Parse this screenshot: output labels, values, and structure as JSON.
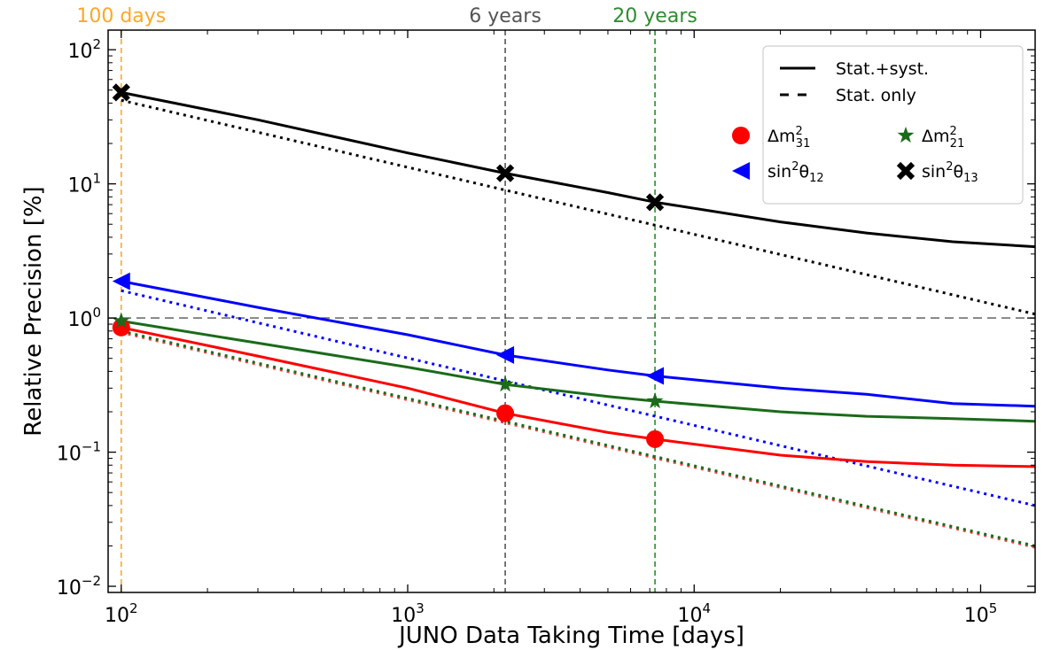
{
  "chart_data": {
    "type": "line",
    "title": "",
    "xlabel": "JUNO Data Taking Time [days]",
    "ylabel": "Relative Precision [%]",
    "xscale": "log",
    "yscale": "log",
    "xlim": [
      90,
      155000
    ],
    "ylim": [
      0.009,
      140
    ],
    "x_ticks": [
      {
        "value": 100,
        "base": "10",
        "exp": "2"
      },
      {
        "value": 1000,
        "base": "10",
        "exp": "3"
      },
      {
        "value": 10000,
        "base": "10",
        "exp": "4"
      },
      {
        "value": 100000,
        "base": "10",
        "exp": "5"
      }
    ],
    "y_ticks": [
      {
        "value": 0.01,
        "base": "10",
        "exp": "−2"
      },
      {
        "value": 0.1,
        "base": "10",
        "exp": "−1"
      },
      {
        "value": 1,
        "base": "10",
        "exp": "0"
      },
      {
        "value": 10,
        "base": "10",
        "exp": "1"
      },
      {
        "value": 100,
        "base": "10",
        "exp": "2"
      }
    ],
    "reference_lines": [
      {
        "axis": "x",
        "value": 100,
        "label": "100 days",
        "color": "#ffa726"
      },
      {
        "axis": "x",
        "value": 2190,
        "label": "6 years",
        "color": "#555555"
      },
      {
        "axis": "x",
        "value": 7300,
        "label": "20 years",
        "color": "#2e8b2e"
      },
      {
        "axis": "y",
        "value": 1,
        "label": "",
        "color": "#555555"
      }
    ],
    "series": [
      {
        "name": "sin²θ13",
        "color": "#000000",
        "marker": "x",
        "syst": {
          "x": [
            100,
            300,
            1000,
            2190,
            5000,
            7300,
            20000,
            40000,
            80000,
            155000
          ],
          "y": [
            48,
            30,
            17,
            12,
            8.6,
            7.3,
            5.2,
            4.3,
            3.7,
            3.4
          ]
        },
        "stat": {
          "x": [
            100,
            155000
          ],
          "y": [
            42,
            1.07
          ]
        },
        "markers": {
          "x": [
            100,
            2190,
            7300
          ],
          "y": [
            48,
            12,
            7.3
          ]
        }
      },
      {
        "name": "sin²θ12",
        "color": "#0000ff",
        "marker": "triangle-left",
        "syst": {
          "x": [
            100,
            300,
            1000,
            2190,
            5000,
            7300,
            20000,
            40000,
            80000,
            155000
          ],
          "y": [
            1.88,
            1.2,
            0.75,
            0.53,
            0.41,
            0.37,
            0.3,
            0.27,
            0.23,
            0.22
          ]
        },
        "stat": {
          "x": [
            100,
            155000
          ],
          "y": [
            1.6,
            0.04
          ]
        },
        "markers": {
          "x": [
            100,
            2190,
            7300
          ],
          "y": [
            1.88,
            0.53,
            0.37
          ]
        }
      },
      {
        "name": "Δm²21",
        "color": "#1a6b1a",
        "marker": "star",
        "syst": {
          "x": [
            100,
            300,
            1000,
            2190,
            5000,
            7300,
            20000,
            40000,
            80000,
            155000
          ],
          "y": [
            0.95,
            0.65,
            0.43,
            0.32,
            0.26,
            0.24,
            0.2,
            0.185,
            0.178,
            0.17
          ]
        },
        "stat": {
          "x": [
            100,
            155000
          ],
          "y": [
            0.8,
            0.02
          ]
        },
        "markers": {
          "x": [
            100,
            2190,
            7300
          ],
          "y": [
            0.95,
            0.32,
            0.24
          ]
        }
      },
      {
        "name": "Δm²31",
        "color": "#ff0000",
        "marker": "circle",
        "syst": {
          "x": [
            100,
            300,
            1000,
            2190,
            5000,
            7300,
            20000,
            40000,
            80000,
            155000
          ],
          "y": [
            0.85,
            0.52,
            0.3,
            0.195,
            0.14,
            0.125,
            0.095,
            0.085,
            0.08,
            0.078
          ]
        },
        "stat": {
          "x": [
            100,
            155000
          ],
          "y": [
            0.78,
            0.0195
          ]
        },
        "markers": {
          "x": [
            100,
            2190,
            7300
          ],
          "y": [
            0.85,
            0.195,
            0.125
          ]
        }
      }
    ],
    "legend": {
      "placement": "top-right",
      "style_entries": [
        {
          "label": "Stat.+syst.",
          "style": "solid"
        },
        {
          "label": "Stat. only",
          "style": "dashed"
        }
      ],
      "marker_entries": [
        {
          "base": "Δm",
          "sup": "2",
          "sub": "31",
          "color": "#ff0000",
          "marker": "circle"
        },
        {
          "base": "Δm",
          "sup": "2",
          "sub": "21",
          "color": "#1a6b1a",
          "marker": "star"
        },
        {
          "base": "sin",
          "sup": "2",
          "sym": "θ",
          "sub": "12",
          "color": "#0000ff",
          "marker": "triangle-left"
        },
        {
          "base": "sin",
          "sup": "2",
          "sym": "θ",
          "sub": "13",
          "color": "#000000",
          "marker": "x"
        }
      ]
    }
  }
}
